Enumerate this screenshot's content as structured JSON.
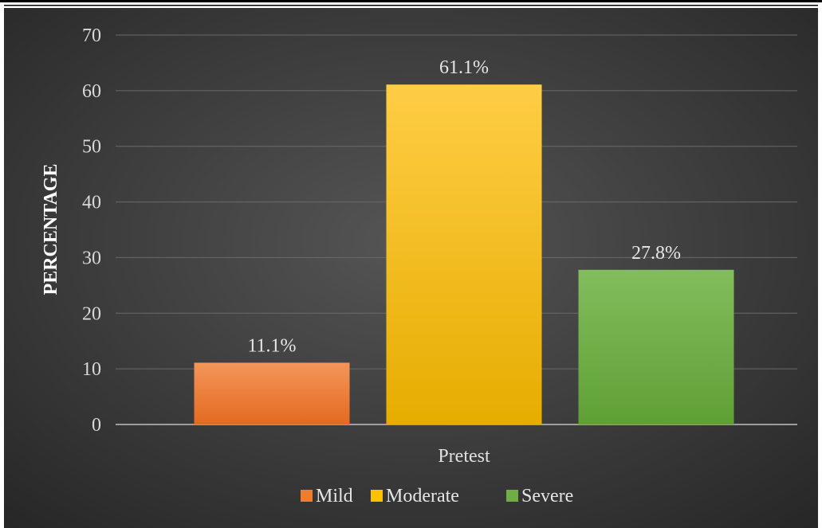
{
  "chart_data": {
    "type": "bar",
    "categories": [
      "Pretest"
    ],
    "series": [
      {
        "name": "Mild",
        "values": [
          11.1
        ],
        "label": "11.1%",
        "color": "#ed7d31"
      },
      {
        "name": "Moderate",
        "values": [
          61.1
        ],
        "label": "61.1%",
        "color": "#ffc000"
      },
      {
        "name": "Severe",
        "values": [
          27.8
        ],
        "label": "27.8%",
        "color": "#70ad47"
      }
    ],
    "title": "",
    "xlabel": "",
    "ylabel": "PERCENTAGE",
    "ylim": [
      0,
      70
    ],
    "yticks": [
      0,
      10,
      20,
      30,
      40,
      50,
      60,
      70
    ],
    "grid": true,
    "legend_position": "bottom",
    "background": "#3a3a3a"
  }
}
